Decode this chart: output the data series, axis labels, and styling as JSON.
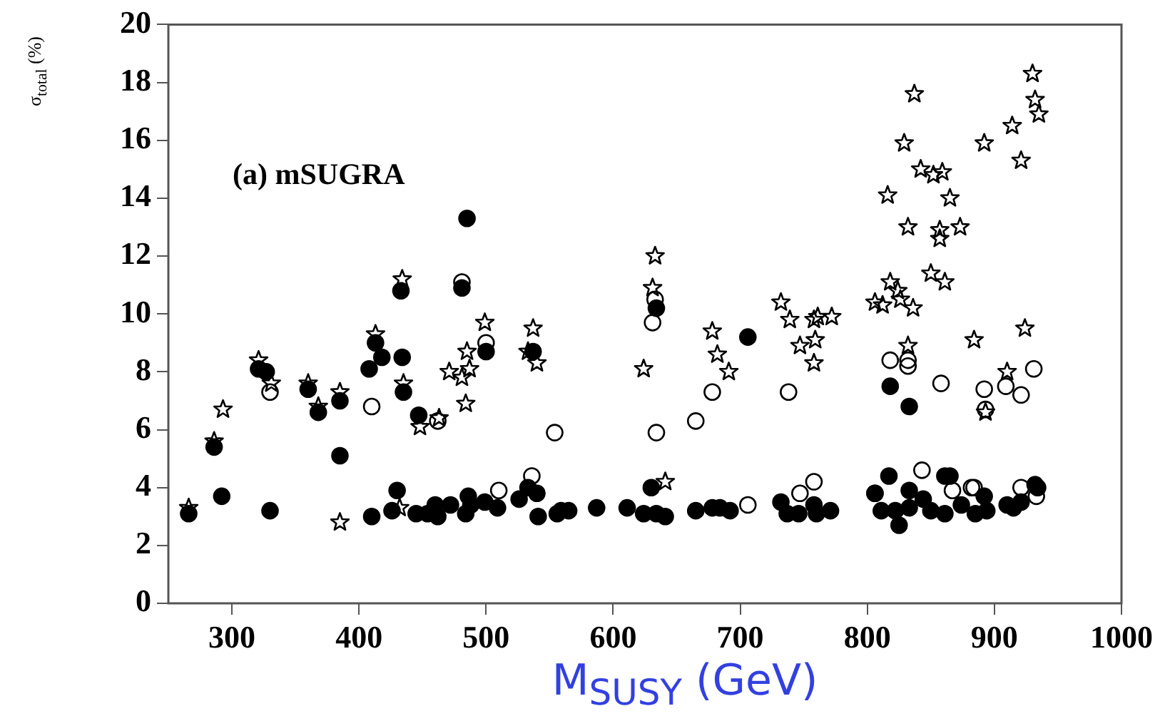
{
  "chart_data": {
    "type": "scatter",
    "xlabel": "M$_{SUSY}$ (GeV)",
    "ylabel": "σ$_{total}$ (%)",
    "annotations": [
      "(a) mSUGRA"
    ],
    "xlim": [
      250,
      1000
    ],
    "xticks": [
      300,
      400,
      500,
      600,
      700,
      800,
      900,
      1000
    ],
    "ylim": [
      0,
      20
    ],
    "yticks": [
      0,
      2,
      4,
      6,
      8,
      10,
      12,
      14,
      16,
      18,
      20
    ],
    "grid": false,
    "legend": false,
    "series": [
      {
        "color": "#000000",
        "marker": "circle",
        "x": [
          266,
          286,
          292,
          321,
          327,
          330,
          360,
          368,
          385,
          385,
          408,
          413,
          418,
          410,
          426,
          430,
          433,
          434,
          435,
          447,
          445,
          454,
          460,
          462,
          472,
          481,
          485,
          484,
          486,
          488,
          500,
          499,
          509,
          526,
          533,
          537,
          540,
          541,
          556,
          559,
          565,
          587,
          611,
          624,
          630,
          634,
          634,
          641,
          665,
          678,
          684,
          692,
          706,
          732,
          737,
          746,
          758,
          760,
          771,
          806,
          811,
          817,
          818,
          822,
          825,
          833,
          833,
          833,
          844,
          850,
          861,
          861,
          865,
          874,
          885,
          894,
          892,
          910,
          915,
          921,
          932,
          934
        ],
        "values": [
          3.1,
          5.4,
          3.7,
          8.1,
          8.0,
          3.2,
          7.4,
          6.6,
          7.0,
          5.1,
          8.1,
          9.0,
          8.5,
          3.0,
          3.2,
          3.9,
          10.8,
          8.5,
          7.3,
          6.5,
          3.1,
          3.1,
          3.4,
          3.0,
          3.4,
          10.9,
          13.3,
          3.1,
          3.7,
          3.4,
          8.7,
          3.5,
          3.3,
          3.6,
          4.0,
          8.7,
          3.8,
          3.0,
          3.1,
          3.2,
          3.2,
          3.3,
          3.3,
          3.1,
          4.0,
          10.2,
          3.1,
          3.0,
          3.2,
          3.3,
          3.3,
          3.2,
          9.2,
          3.5,
          3.1,
          3.1,
          3.4,
          3.1,
          3.2,
          3.8,
          3.2,
          4.4,
          7.5,
          3.2,
          2.7,
          6.8,
          3.9,
          3.3,
          3.6,
          3.2,
          4.4,
          3.1,
          4.4,
          3.4,
          3.1,
          3.2,
          3.7,
          3.4,
          3.3,
          3.5,
          4.1,
          4.0
        ]
      },
      {
        "color": "#000000",
        "marker": "circle",
        "x": [
          330,
          410,
          481,
          462,
          500,
          510,
          536,
          554,
          631,
          633,
          634,
          665,
          678,
          706,
          738,
          747,
          758,
          818,
          832,
          832,
          858,
          843,
          806,
          867,
          882,
          892,
          893,
          909,
          921,
          931,
          884,
          921,
          933
        ],
        "values": [
          7.3,
          6.8,
          11.1,
          6.3,
          9.0,
          3.9,
          4.4,
          5.9,
          9.7,
          10.5,
          5.9,
          6.3,
          7.3,
          3.4,
          7.3,
          3.8,
          4.2,
          8.4,
          8.4,
          8.2,
          7.6,
          4.6,
          3.8,
          3.9,
          4.0,
          7.4,
          6.7,
          7.5,
          7.2,
          8.1,
          4.0,
          4.0,
          3.7
        ]
      },
      {
        "color": "#000000",
        "marker": "star",
        "x": [
          266,
          293,
          286,
          321,
          331,
          360,
          368,
          385,
          385,
          413,
          434,
          435,
          432,
          448,
          463,
          471,
          481,
          485,
          487,
          484,
          499,
          537,
          540,
          533,
          624,
          631,
          633,
          641,
          678,
          682,
          691,
          732,
          739,
          747,
          758,
          761,
          772,
          759,
          758,
          806,
          812,
          818,
          816,
          824,
          826,
          836,
          832,
          832,
          829,
          837,
          857,
          857,
          865,
          873,
          850,
          861,
          884,
          930,
          932,
          935,
          914,
          892,
          921,
          842,
          852,
          859,
          924,
          910,
          893
        ],
        "values": [
          3.3,
          6.7,
          5.6,
          8.4,
          7.6,
          7.6,
          6.8,
          7.3,
          2.8,
          9.3,
          11.2,
          7.6,
          3.3,
          6.1,
          6.4,
          8.0,
          7.8,
          8.7,
          8.1,
          6.9,
          9.7,
          9.5,
          8.3,
          8.7,
          8.1,
          10.9,
          12.0,
          4.2,
          9.4,
          8.6,
          8.0,
          10.4,
          9.8,
          8.9,
          9.8,
          9.9,
          9.9,
          9.1,
          8.3,
          10.4,
          10.3,
          11.1,
          14.1,
          10.8,
          10.5,
          10.2,
          8.9,
          13.0,
          15.9,
          17.6,
          12.9,
          12.6,
          14.0,
          13.0,
          11.4,
          11.1,
          9.1,
          18.3,
          17.4,
          16.9,
          16.5,
          15.9,
          15.3,
          15.0,
          14.8,
          14.9,
          9.5,
          8.0,
          6.6
        ]
      }
    ]
  }
}
